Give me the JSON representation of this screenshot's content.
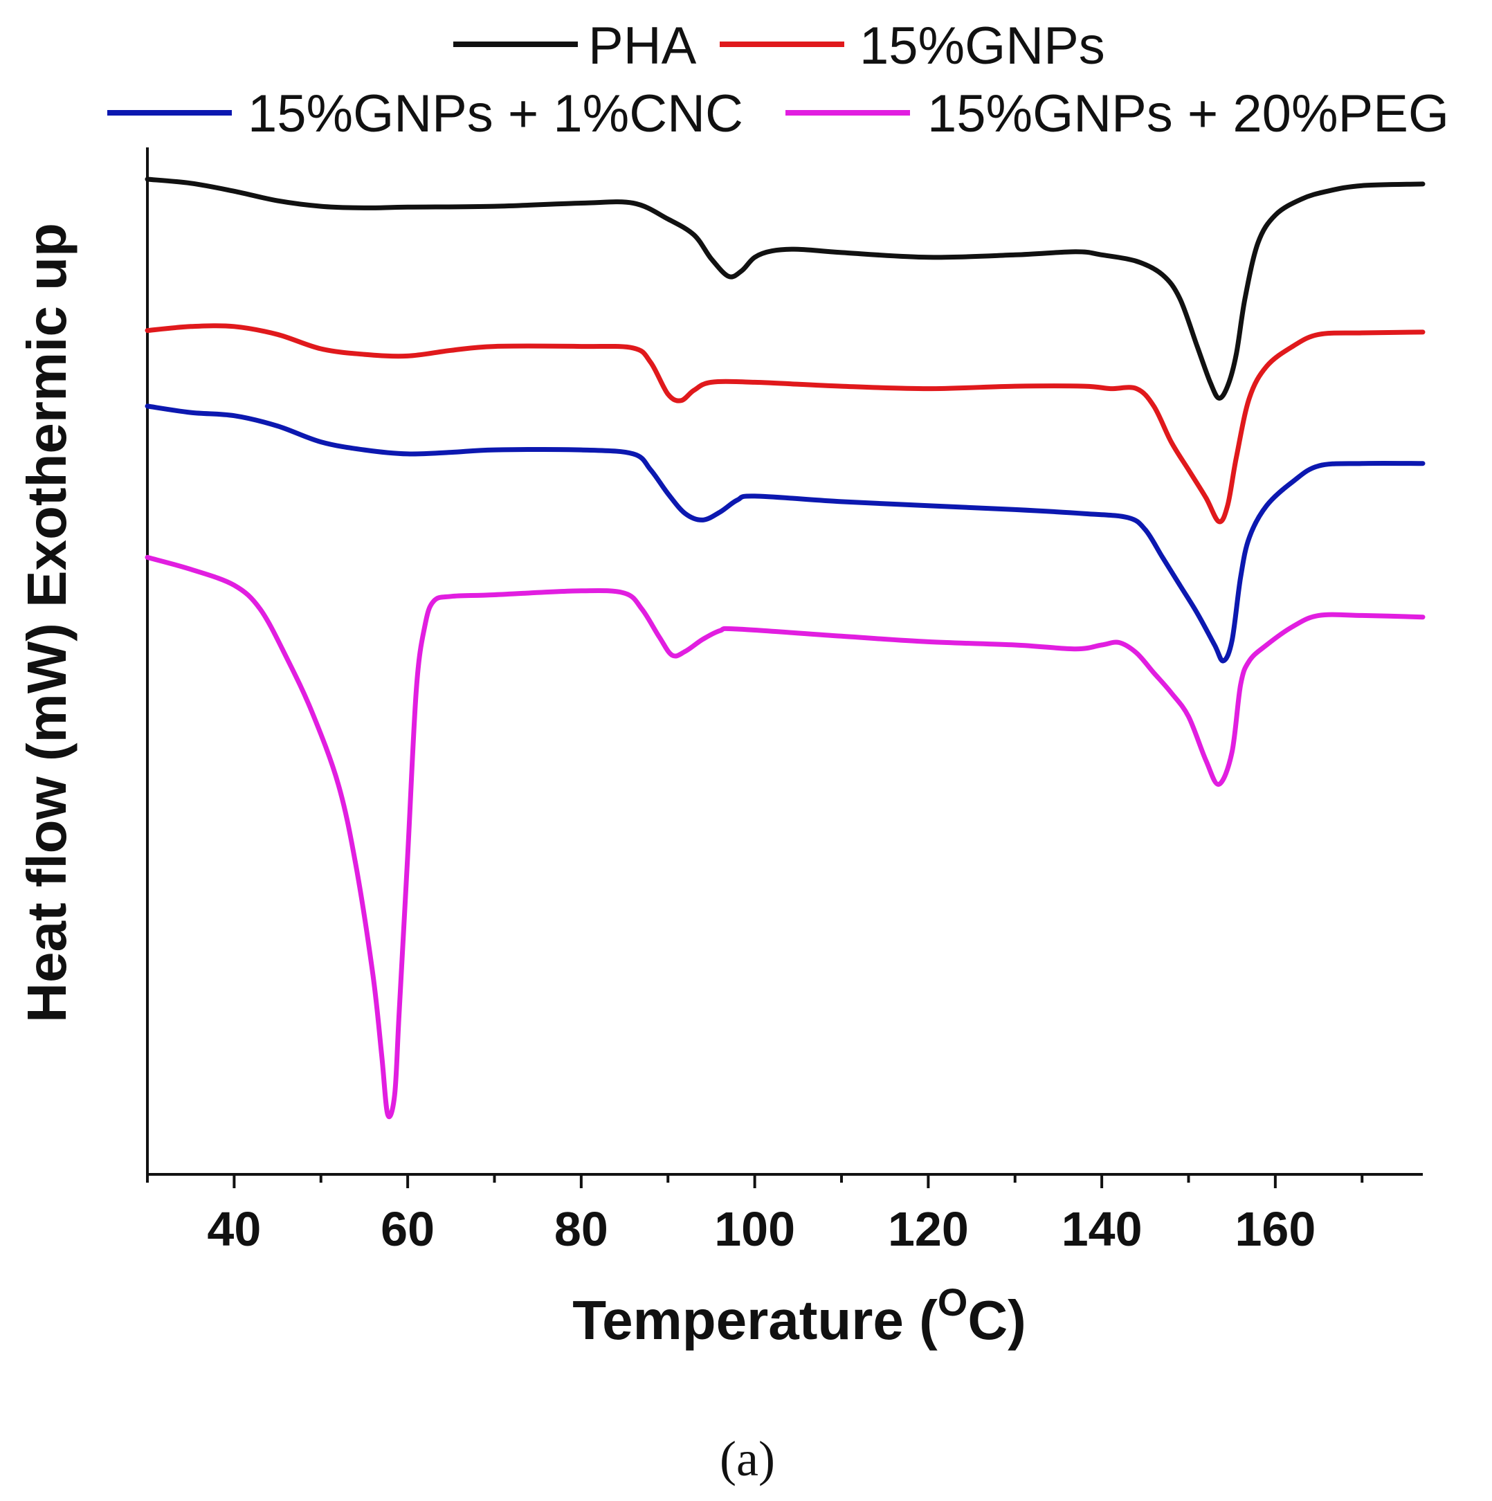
{
  "chart_data": {
    "type": "line",
    "title": "",
    "caption": "(a)",
    "xlabel": "Temperature (°C)",
    "xlabel_main": "Temperature (",
    "xlabel_degree": "O",
    "xlabel_unit": "C)",
    "ylabel": "Heat flow (mW) Exothermic up",
    "xlim": [
      30,
      177
    ],
    "ylim": [
      -11.5,
      1.4
    ],
    "xticks": [
      40,
      60,
      80,
      100,
      120,
      140,
      160
    ],
    "xtick_labels": [
      "40",
      "60",
      "80",
      "100",
      "120",
      "140",
      "160"
    ],
    "x_minor_ticks": [
      30,
      50,
      70,
      90,
      110,
      130,
      150,
      170
    ],
    "yticks_shown": false,
    "legend_position": "top",
    "series": [
      {
        "name": "PHA",
        "color": "#111111",
        "points": [
          [
            30,
            1.0
          ],
          [
            35,
            0.95
          ],
          [
            40,
            0.85
          ],
          [
            45,
            0.73
          ],
          [
            50,
            0.66
          ],
          [
            55,
            0.64
          ],
          [
            60,
            0.65
          ],
          [
            70,
            0.66
          ],
          [
            80,
            0.7
          ],
          [
            86,
            0.7
          ],
          [
            90,
            0.5
          ],
          [
            93,
            0.3
          ],
          [
            95,
            0.0
          ],
          [
            97,
            -0.22
          ],
          [
            98.5,
            -0.15
          ],
          [
            100,
            0.02
          ],
          [
            102,
            0.1
          ],
          [
            105,
            0.12
          ],
          [
            110,
            0.08
          ],
          [
            120,
            0.02
          ],
          [
            130,
            0.05
          ],
          [
            137,
            0.09
          ],
          [
            140,
            0.05
          ],
          [
            144,
            -0.03
          ],
          [
            147,
            -0.2
          ],
          [
            149,
            -0.5
          ],
          [
            151,
            -1.1
          ],
          [
            152.5,
            -1.55
          ],
          [
            153.5,
            -1.75
          ],
          [
            154.5,
            -1.6
          ],
          [
            155.5,
            -1.2
          ],
          [
            156.5,
            -0.5
          ],
          [
            158,
            0.2
          ],
          [
            160,
            0.55
          ],
          [
            163,
            0.75
          ],
          [
            166,
            0.85
          ],
          [
            170,
            0.92
          ],
          [
            177,
            0.94
          ]
        ]
      },
      {
        "name": "15%GNPs",
        "color": "#e0191c",
        "points": [
          [
            30,
            -0.9
          ],
          [
            35,
            -0.85
          ],
          [
            40,
            -0.85
          ],
          [
            45,
            -0.95
          ],
          [
            50,
            -1.13
          ],
          [
            55,
            -1.2
          ],
          [
            60,
            -1.22
          ],
          [
            65,
            -1.15
          ],
          [
            70,
            -1.1
          ],
          [
            80,
            -1.1
          ],
          [
            86,
            -1.12
          ],
          [
            88,
            -1.3
          ],
          [
            90,
            -1.7
          ],
          [
            91.5,
            -1.78
          ],
          [
            93,
            -1.65
          ],
          [
            95,
            -1.55
          ],
          [
            100,
            -1.55
          ],
          [
            110,
            -1.6
          ],
          [
            120,
            -1.63
          ],
          [
            130,
            -1.6
          ],
          [
            138,
            -1.6
          ],
          [
            141,
            -1.63
          ],
          [
            144,
            -1.63
          ],
          [
            146,
            -1.85
          ],
          [
            148,
            -2.3
          ],
          [
            150,
            -2.65
          ],
          [
            152,
            -3.0
          ],
          [
            153.5,
            -3.3
          ],
          [
            154.5,
            -3.1
          ],
          [
            155.5,
            -2.5
          ],
          [
            157,
            -1.75
          ],
          [
            159,
            -1.35
          ],
          [
            162,
            -1.1
          ],
          [
            165,
            -0.95
          ],
          [
            170,
            -0.93
          ],
          [
            177,
            -0.92
          ]
        ]
      },
      {
        "name": "15%GNPs + 1%CNC",
        "color": "#0c18b0",
        "points": [
          [
            30,
            -1.85
          ],
          [
            35,
            -1.93
          ],
          [
            40,
            -1.97
          ],
          [
            45,
            -2.1
          ],
          [
            50,
            -2.3
          ],
          [
            55,
            -2.4
          ],
          [
            60,
            -2.45
          ],
          [
            65,
            -2.43
          ],
          [
            70,
            -2.4
          ],
          [
            80,
            -2.4
          ],
          [
            86,
            -2.45
          ],
          [
            88,
            -2.65
          ],
          [
            90,
            -2.95
          ],
          [
            92,
            -3.2
          ],
          [
            94,
            -3.28
          ],
          [
            96,
            -3.18
          ],
          [
            98,
            -3.03
          ],
          [
            100,
            -2.98
          ],
          [
            110,
            -3.05
          ],
          [
            120,
            -3.1
          ],
          [
            130,
            -3.15
          ],
          [
            138,
            -3.2
          ],
          [
            143,
            -3.25
          ],
          [
            145,
            -3.4
          ],
          [
            147,
            -3.75
          ],
          [
            149,
            -4.1
          ],
          [
            151,
            -4.45
          ],
          [
            153,
            -4.85
          ],
          [
            154,
            -5.05
          ],
          [
            155,
            -4.8
          ],
          [
            156,
            -4.0
          ],
          [
            157,
            -3.5
          ],
          [
            159,
            -3.1
          ],
          [
            162,
            -2.8
          ],
          [
            165,
            -2.6
          ],
          [
            170,
            -2.57
          ],
          [
            177,
            -2.57
          ]
        ]
      },
      {
        "name": "15%GNPs + 20%PEG",
        "color": "#e11ee0",
        "points": [
          [
            30,
            -3.75
          ],
          [
            35,
            -3.9
          ],
          [
            40,
            -4.1
          ],
          [
            43,
            -4.4
          ],
          [
            46,
            -5.0
          ],
          [
            49,
            -5.7
          ],
          [
            52,
            -6.6
          ],
          [
            54,
            -7.6
          ],
          [
            56,
            -9.0
          ],
          [
            57,
            -10.0
          ],
          [
            57.7,
            -10.75
          ],
          [
            58.5,
            -10.5
          ],
          [
            59,
            -9.5
          ],
          [
            60,
            -7.5
          ],
          [
            61,
            -5.4
          ],
          [
            62,
            -4.6
          ],
          [
            63,
            -4.3
          ],
          [
            65,
            -4.24
          ],
          [
            70,
            -4.22
          ],
          [
            80,
            -4.17
          ],
          [
            85,
            -4.2
          ],
          [
            87,
            -4.4
          ],
          [
            89,
            -4.75
          ],
          [
            90.5,
            -4.98
          ],
          [
            92,
            -4.93
          ],
          [
            94,
            -4.78
          ],
          [
            96,
            -4.67
          ],
          [
            98,
            -4.65
          ],
          [
            110,
            -4.74
          ],
          [
            120,
            -4.81
          ],
          [
            130,
            -4.85
          ],
          [
            137,
            -4.9
          ],
          [
            140,
            -4.85
          ],
          [
            142,
            -4.82
          ],
          [
            144,
            -4.95
          ],
          [
            146,
            -5.2
          ],
          [
            148,
            -5.45
          ],
          [
            150,
            -5.75
          ],
          [
            152,
            -6.3
          ],
          [
            153.5,
            -6.6
          ],
          [
            155,
            -6.2
          ],
          [
            156,
            -5.35
          ],
          [
            157,
            -5.05
          ],
          [
            159,
            -4.85
          ],
          [
            162,
            -4.62
          ],
          [
            165,
            -4.48
          ],
          [
            170,
            -4.48
          ],
          [
            177,
            -4.5
          ]
        ]
      }
    ]
  }
}
